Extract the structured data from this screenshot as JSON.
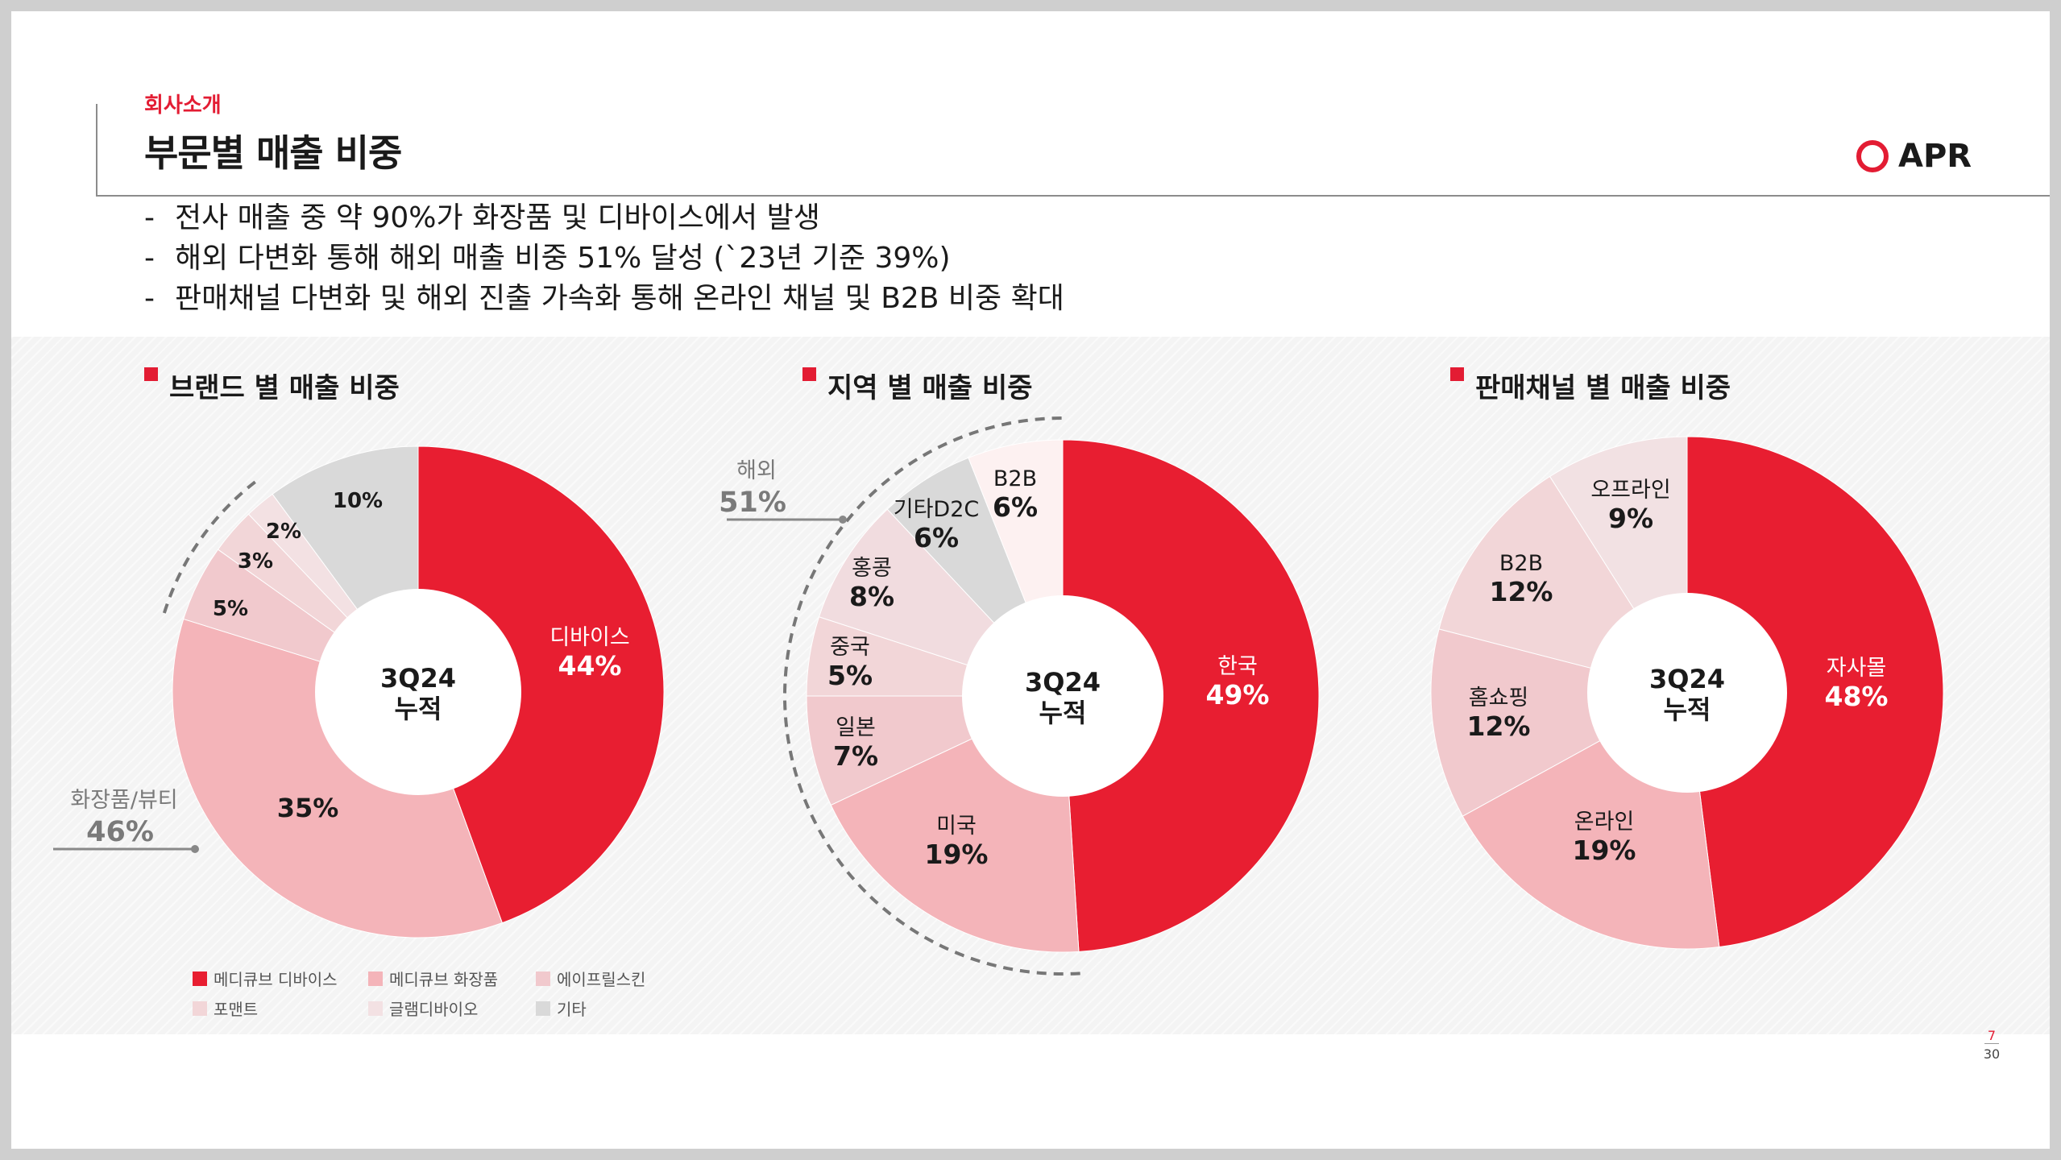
{
  "header": {
    "section": "회사소개",
    "title": "부문별 매출 비중",
    "logo_text": "APR"
  },
  "bullets": [
    "전사 매출 중 약 90%가 화장품 및 디바이스에서 발생",
    "해외 다변화 통해 해외 매출 비중 51% 달성 (`23년 기준 39%)",
    "판매채널 다변화 및 해외 진출 가속화 통해 온라인 채널 및 B2B 비중 확대"
  ],
  "bullet_marker": "-",
  "colors": {
    "accent": "#e31c33",
    "text": "#1a1a1a",
    "muted": "#7a7a7a",
    "dash": "#777777"
  },
  "chart_data": [
    {
      "type": "pie",
      "title": "브랜드 별 매출 비중",
      "center_label": [
        "3Q24",
        "누적"
      ],
      "slices": [
        {
          "name": "메디큐브 디바이스",
          "label": "디바이스",
          "value": 44,
          "color": "#e81e31"
        },
        {
          "name": "메디큐브 화장품",
          "label": "",
          "value": 35,
          "color": "#f4b4b9"
        },
        {
          "name": "에이프릴스킨",
          "label": "",
          "value": 5,
          "color": "#f1c9cd"
        },
        {
          "name": "포맨트",
          "label": "",
          "value": 3,
          "color": "#f2d6d8"
        },
        {
          "name": "글램디바이오",
          "label": "",
          "value": 2,
          "color": "#f3e1e3"
        },
        {
          "name": "기타",
          "label": "",
          "value": 10,
          "color": "#d9d9d9"
        }
      ],
      "group": {
        "label": "화장품/뷰티",
        "value_text": "46%"
      }
    },
    {
      "type": "pie",
      "title": "지역 별 매출 비중",
      "center_label": [
        "3Q24",
        "누적"
      ],
      "slices": [
        {
          "name": "한국",
          "label": "한국",
          "value": 49,
          "color": "#e81e31"
        },
        {
          "name": "미국",
          "label": "미국",
          "value": 19,
          "color": "#f4b4b9"
        },
        {
          "name": "일본",
          "label": "일본",
          "value": 7,
          "color": "#f1c9cd"
        },
        {
          "name": "중국",
          "label": "중국",
          "value": 5,
          "color": "#f2d6d8"
        },
        {
          "name": "홍콩",
          "label": "홍콩",
          "value": 8,
          "color": "#f1dcdf"
        },
        {
          "name": "기타D2C",
          "label": "기타D2C",
          "value": 6,
          "color": "#d9d9d9"
        },
        {
          "name": "B2B",
          "label": "B2B",
          "value": 6,
          "color": "#fdf1f1"
        }
      ],
      "group": {
        "label": "해외",
        "value_text": "51%"
      }
    },
    {
      "type": "pie",
      "title": "판매채널 별 매출 비중",
      "center_label": [
        "3Q24",
        "누적"
      ],
      "slices": [
        {
          "name": "자사몰",
          "label": "자사몰",
          "value": 48,
          "color": "#e81e31"
        },
        {
          "name": "온라인",
          "label": "온라인",
          "value": 19,
          "color": "#f4b4b9"
        },
        {
          "name": "홈쇼핑",
          "label": "홈쇼핑",
          "value": 12,
          "color": "#f1c9cd"
        },
        {
          "name": "B2B",
          "label": "B2B",
          "value": 12,
          "color": "#f2d6d8"
        },
        {
          "name": "오프라인",
          "label": "오프라인",
          "value": 9,
          "color": "#f2e1e3"
        }
      ]
    }
  ],
  "page": {
    "current": "7",
    "total": "30"
  }
}
